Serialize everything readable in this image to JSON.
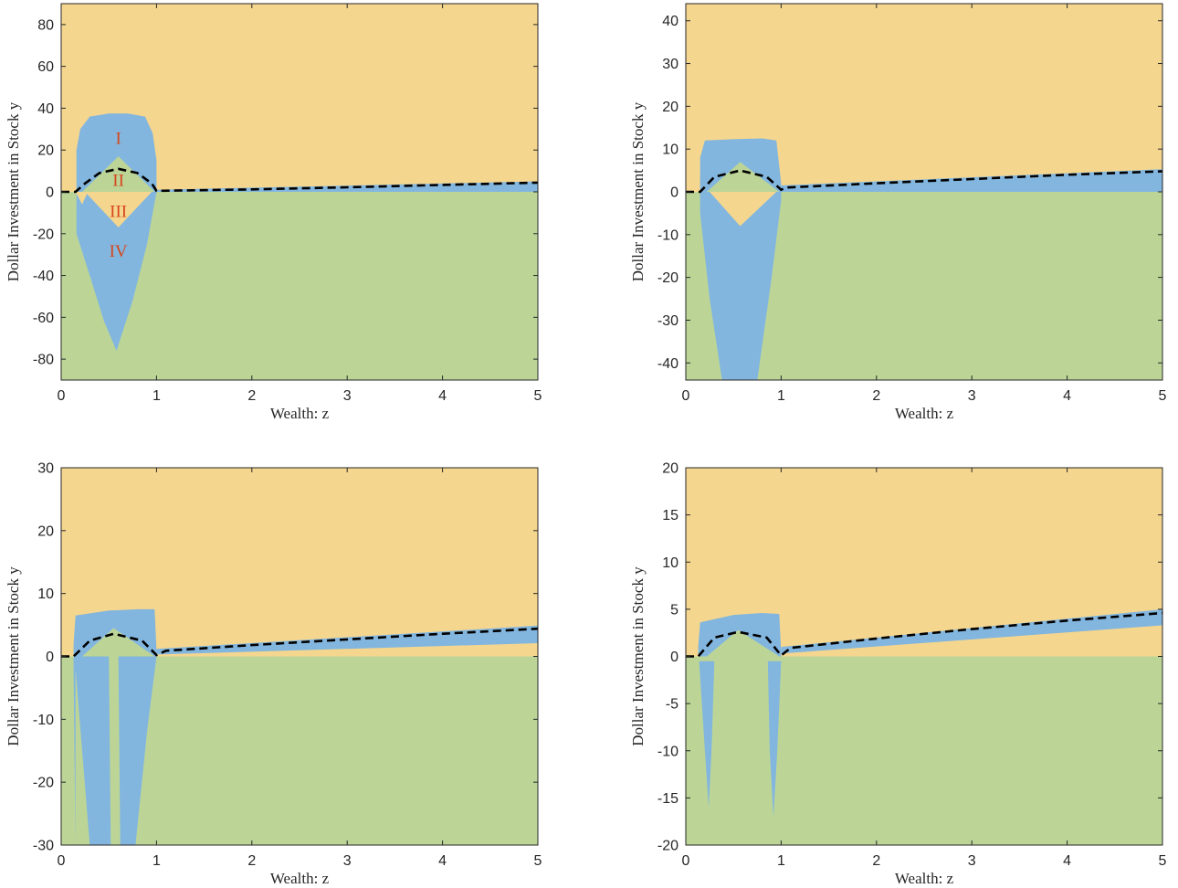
{
  "colors": {
    "orange": "#F5D68E",
    "blue": "#82B6DF",
    "green": "#BCD597",
    "boundary": "#000000",
    "region_label": "#D6461E"
  },
  "chart_data": [
    {
      "type": "area",
      "panel": "top-left",
      "xlabel": "Wealth: z",
      "ylabel": "Dollar Investment in Stock y",
      "xlim": [
        0,
        5
      ],
      "ylim": [
        -90,
        90
      ],
      "xticks": [
        0,
        1,
        2,
        3,
        4,
        5
      ],
      "yticks": [
        -80,
        -60,
        -40,
        -20,
        0,
        20,
        40,
        60,
        80
      ],
      "region_labels": [
        {
          "text": "I",
          "x": 0.6,
          "y": 26
        },
        {
          "text": "II",
          "x": 0.6,
          "y": 6
        },
        {
          "text": "III",
          "x": 0.6,
          "y": -9
        },
        {
          "text": "IV",
          "x": 0.6,
          "y": -28
        }
      ],
      "blue_upper": {
        "z": [
          0.16,
          0.2,
          0.3,
          0.5,
          0.7,
          0.88,
          0.96,
          1.0
        ],
        "y": [
          20,
          30,
          36,
          37.5,
          37.5,
          36,
          28,
          15
        ]
      },
      "blue_lower": {
        "z": [
          0.16,
          0.3,
          0.45,
          0.58,
          0.75,
          0.9,
          1.0
        ],
        "y": [
          -20,
          -40,
          -62,
          -76,
          -52,
          -25,
          0
        ]
      },
      "ii_apex": {
        "z": 0.6,
        "y": 17
      },
      "iii_apex": {
        "z": 0.6,
        "y": -17
      },
      "boundary_curve": {
        "z": [
          0,
          0.15,
          0.25,
          0.4,
          0.6,
          0.8,
          0.95,
          1.0,
          2,
          3,
          4,
          5
        ],
        "y": [
          0,
          0,
          4,
          9,
          11,
          9,
          4,
          0.5,
          1.2,
          2.2,
          3.3,
          4.4
        ]
      },
      "blue_strip_top": {
        "z": [
          1.0,
          5.0
        ],
        "y": [
          1.0,
          5.0
        ]
      }
    },
    {
      "type": "area",
      "panel": "top-right",
      "xlabel": "Wealth: z",
      "ylabel": "Dollar Investment in Stock y",
      "xlim": [
        0,
        5
      ],
      "ylim": [
        -44,
        44
      ],
      "xticks": [
        0,
        1,
        2,
        3,
        4,
        5
      ],
      "yticks": [
        -40,
        -30,
        -20,
        -10,
        0,
        10,
        20,
        30,
        40
      ],
      "region_labels": [],
      "blue_upper": {
        "z": [
          0.15,
          0.2,
          0.5,
          0.8,
          0.95,
          1.0
        ],
        "y": [
          8,
          12,
          12.3,
          12.5,
          12,
          2
        ]
      },
      "blue_lower": {
        "z": [
          0.15,
          0.25,
          0.38,
          0.45,
          0.6,
          0.75,
          0.9,
          1.0
        ],
        "y": [
          -5,
          -25,
          -44,
          -44,
          -44,
          -44,
          -20,
          -2
        ]
      },
      "ii_apex": {
        "z": 0.57,
        "y": 7
      },
      "iii_apex": {
        "z": 0.57,
        "y": -8
      },
      "boundary_curve": {
        "z": [
          0,
          0.15,
          0.3,
          0.57,
          0.85,
          1.0,
          1.05,
          2,
          3,
          4,
          5
        ],
        "y": [
          0,
          0,
          3.5,
          5,
          3.5,
          0.5,
          1,
          2,
          3,
          4,
          4.8
        ]
      },
      "blue_strip_top": {
        "z": [
          1.0,
          5.0
        ],
        "y": [
          1.5,
          5.3
        ]
      }
    },
    {
      "type": "area",
      "panel": "bottom-left",
      "xlabel": "Wealth: z",
      "ylabel": "Dollar Investment in Stock y",
      "xlim": [
        0,
        5
      ],
      "ylim": [
        -30,
        30
      ],
      "xticks": [
        0,
        1,
        2,
        3,
        4,
        5
      ],
      "yticks": [
        -30,
        -20,
        -10,
        0,
        10,
        20,
        30
      ],
      "region_labels": [],
      "blue_upper": {
        "z": [
          0.13,
          0.15,
          0.5,
          0.8,
          0.98,
          1.0
        ],
        "y": [
          2,
          6.5,
          7.3,
          7.5,
          7.5,
          1
        ]
      },
      "blue_lower_left": {
        "z": [
          0.15,
          0.3,
          0.45,
          0.52
        ],
        "y": [
          -2,
          -30,
          -30,
          -30
        ]
      },
      "blue_lower_right": {
        "z": [
          0.62,
          0.78,
          0.9,
          1.0
        ],
        "y": [
          -30,
          -30,
          -12,
          0
        ]
      },
      "ii_apex": {
        "z": 0.55,
        "y": 4.5
      },
      "boundary_curve": {
        "z": [
          0,
          0.13,
          0.3,
          0.55,
          0.85,
          1.0,
          1.1,
          2,
          3,
          4,
          5
        ],
        "y": [
          0,
          0,
          2.5,
          3.6,
          2.5,
          0.2,
          0.9,
          1.8,
          2.7,
          3.6,
          4.4
        ]
      },
      "blue_strip_top": {
        "z": [
          1.0,
          5.0
        ],
        "y": [
          1.2,
          4.9
        ]
      },
      "blue_strip_bottom": {
        "z": [
          1.0,
          5.0
        ],
        "y": [
          0.3,
          2.1
        ]
      }
    },
    {
      "type": "area",
      "panel": "bottom-right",
      "xlabel": "Wealth: z",
      "ylabel": "Dollar Investment in Stock y",
      "xlim": [
        0,
        5
      ],
      "ylim": [
        -20,
        20
      ],
      "xticks": [
        0,
        1,
        2,
        3,
        4,
        5
      ],
      "yticks": [
        -20,
        -15,
        -10,
        -5,
        0,
        5,
        10,
        15,
        20
      ],
      "region_labels": [],
      "blue_upper": {
        "z": [
          0.13,
          0.15,
          0.5,
          0.8,
          0.98,
          1.0
        ],
        "y": [
          1,
          3.6,
          4.4,
          4.6,
          4.5,
          0.5
        ]
      },
      "spike_left": {
        "z": [
          0.14,
          0.2,
          0.24,
          0.27,
          0.3
        ],
        "y": [
          -0.5,
          -10,
          -16,
          -10,
          -0.5
        ]
      },
      "spike_right": {
        "z": [
          0.86,
          0.88,
          0.92,
          0.96,
          1.0
        ],
        "y": [
          -0.5,
          -10,
          -17,
          -10,
          -0.5
        ]
      },
      "ii_apex": {
        "z": 0.55,
        "y": 2.8
      },
      "boundary_curve": {
        "z": [
          0,
          0.13,
          0.3,
          0.55,
          0.85,
          1.0,
          1.1,
          2,
          3,
          4,
          5
        ],
        "y": [
          0,
          0,
          2,
          2.6,
          2,
          0.1,
          0.9,
          1.9,
          2.9,
          3.8,
          4.6
        ]
      },
      "blue_strip_top": {
        "z": [
          1.0,
          5.0
        ],
        "y": [
          1.0,
          5.0
        ]
      },
      "blue_strip_bottom": {
        "z": [
          1.0,
          5.0
        ],
        "y": [
          0.3,
          3.3
        ]
      }
    }
  ]
}
